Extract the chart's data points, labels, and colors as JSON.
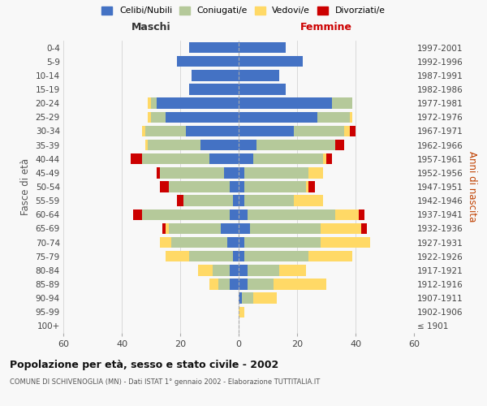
{
  "age_groups": [
    "100+",
    "95-99",
    "90-94",
    "85-89",
    "80-84",
    "75-79",
    "70-74",
    "65-69",
    "60-64",
    "55-59",
    "50-54",
    "45-49",
    "40-44",
    "35-39",
    "30-34",
    "25-29",
    "20-24",
    "15-19",
    "10-14",
    "5-9",
    "0-4"
  ],
  "birth_years": [
    "≤ 1901",
    "1902-1906",
    "1907-1911",
    "1912-1916",
    "1917-1921",
    "1922-1926",
    "1927-1931",
    "1932-1936",
    "1937-1941",
    "1942-1946",
    "1947-1951",
    "1952-1956",
    "1957-1961",
    "1962-1966",
    "1967-1971",
    "1972-1976",
    "1977-1981",
    "1982-1986",
    "1987-1991",
    "1992-1996",
    "1997-2001"
  ],
  "maschi_celibe": [
    0,
    0,
    0,
    3,
    3,
    2,
    4,
    6,
    3,
    2,
    3,
    5,
    10,
    13,
    18,
    25,
    28,
    17,
    16,
    21,
    17
  ],
  "maschi_coniugato": [
    0,
    0,
    0,
    4,
    6,
    15,
    19,
    18,
    30,
    17,
    21,
    22,
    23,
    18,
    14,
    5,
    2,
    0,
    0,
    0,
    0
  ],
  "maschi_vedovo": [
    0,
    0,
    0,
    3,
    5,
    8,
    4,
    1,
    0,
    0,
    0,
    0,
    0,
    1,
    1,
    1,
    1,
    0,
    0,
    0,
    0
  ],
  "maschi_divorziato": [
    0,
    0,
    0,
    0,
    0,
    0,
    0,
    1,
    3,
    2,
    3,
    1,
    4,
    0,
    0,
    0,
    0,
    0,
    0,
    0,
    0
  ],
  "femmine_celibe": [
    0,
    0,
    1,
    3,
    3,
    2,
    2,
    4,
    3,
    2,
    2,
    2,
    5,
    6,
    19,
    27,
    32,
    16,
    14,
    22,
    16
  ],
  "femmine_coniugata": [
    0,
    0,
    4,
    9,
    11,
    22,
    26,
    24,
    30,
    17,
    21,
    22,
    24,
    27,
    17,
    11,
    7,
    0,
    0,
    0,
    0
  ],
  "femmine_vedova": [
    0,
    2,
    8,
    18,
    9,
    15,
    17,
    14,
    8,
    10,
    1,
    5,
    1,
    0,
    2,
    1,
    0,
    0,
    0,
    0,
    0
  ],
  "femmine_divorziata": [
    0,
    0,
    0,
    0,
    0,
    0,
    0,
    2,
    2,
    0,
    2,
    0,
    2,
    3,
    2,
    0,
    0,
    0,
    0,
    0,
    0
  ],
  "colors": {
    "celibe": "#4472c4",
    "coniugato": "#b5c99a",
    "vedovo": "#ffd966",
    "divorziato": "#cc0000"
  },
  "xlim": 60,
  "title": "Popolazione per età, sesso e stato civile - 2002",
  "subtitle": "COMUNE DI SCHIVENOGLIA (MN) - Dati ISTAT 1° gennaio 2002 - Elaborazione TUTTITALIA.IT",
  "ylabel_left": "Fasce di età",
  "ylabel_right": "Anni di nascita",
  "xlabel_left": "Maschi",
  "xlabel_right": "Femmine",
  "legend_labels": [
    "Celibi/Nubili",
    "Coniugati/e",
    "Vedovi/e",
    "Divorziati/e"
  ],
  "background_color": "#f8f8f8",
  "grid_color": "#cccccc"
}
